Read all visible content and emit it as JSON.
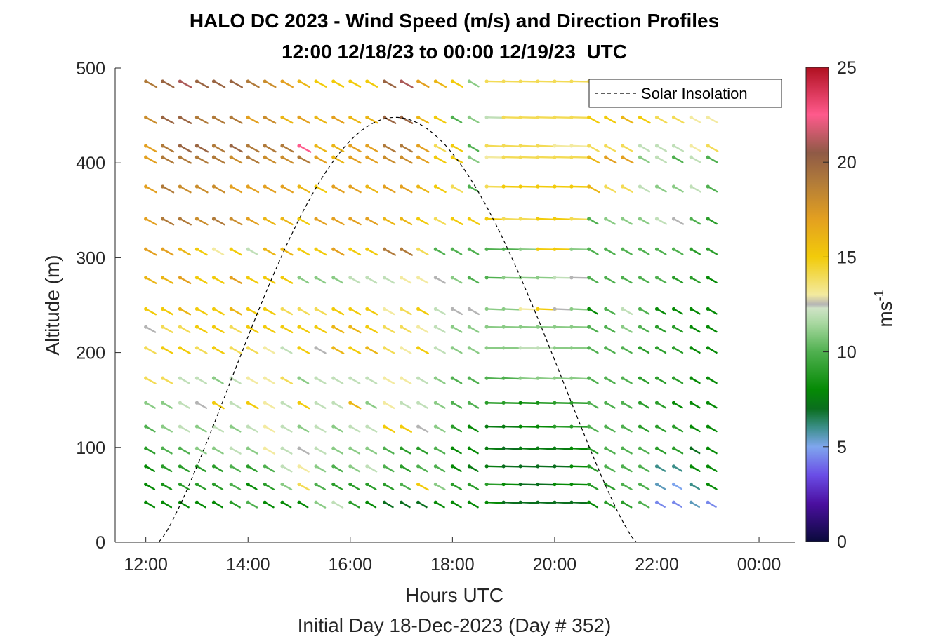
{
  "chart_data": {
    "type": "wind-barb-profile",
    "title": "HALO DC 2023 - Wind Speed (m/s) and Direction Profiles",
    "subtitle": "12:00 12/18/23 to 00:00 12/19/23  UTC",
    "xlabel": "Hours UTC",
    "xlabel2": "Initial Day 18-Dec-2023 (Day # 352)",
    "ylabel": "Altitude (m)",
    "xlim": [
      11.4,
      24.7
    ],
    "ylim": [
      0,
      500
    ],
    "x_ticks": [
      12,
      14,
      16,
      18,
      20,
      22,
      24
    ],
    "x_tick_labels": [
      "12:00",
      "14:00",
      "16:00",
      "18:00",
      "20:00",
      "22:00",
      "00:00"
    ],
    "y_ticks": [
      0,
      100,
      200,
      300,
      400,
      500
    ],
    "y_tick_labels": [
      "0",
      "100",
      "200",
      "300",
      "400",
      "500"
    ],
    "colorbar": {
      "label": "ms",
      "label_exponent": "-1",
      "range": [
        0,
        25
      ],
      "ticks": [
        0,
        5,
        10,
        15,
        20,
        25
      ],
      "tick_labels": [
        "0",
        "5",
        "10",
        "15",
        "20",
        "25"
      ],
      "stops": [
        {
          "v": 0,
          "color": "#0a0a3c"
        },
        {
          "v": 2,
          "color": "#4b0fa0"
        },
        {
          "v": 3.5,
          "color": "#6a4de6"
        },
        {
          "v": 5,
          "color": "#7fa6ee"
        },
        {
          "v": 6,
          "color": "#3c8f8a"
        },
        {
          "v": 7,
          "color": "#0a6e1e"
        },
        {
          "v": 8,
          "color": "#058a05"
        },
        {
          "v": 10,
          "color": "#4fb04f"
        },
        {
          "v": 11.5,
          "color": "#a8d8a0"
        },
        {
          "v": 12.3,
          "color": "#cfe3c6"
        },
        {
          "v": 12.5,
          "color": "#b4b4b4"
        },
        {
          "v": 13,
          "color": "#f3eaa0"
        },
        {
          "v": 15,
          "color": "#f2cb0a"
        },
        {
          "v": 17,
          "color": "#e3a020"
        },
        {
          "v": 19,
          "color": "#b07a3a"
        },
        {
          "v": 20.5,
          "color": "#8f5a46"
        },
        {
          "v": 22.5,
          "color": "#ff5a8c"
        },
        {
          "v": 25,
          "color": "#b01020"
        }
      ]
    },
    "legend": {
      "entries": [
        "Solar Insolation"
      ],
      "placement": "top-right",
      "line_style": "dashed",
      "color": "#000000"
    },
    "solar_insolation": {
      "start_hour": 12.25,
      "peak_hour": 16.88,
      "end_hour": 21.6,
      "peak_altitude_equiv": 448
    },
    "series": {
      "times": [
        12.0,
        12.33,
        12.67,
        13.0,
        13.33,
        13.67,
        14.0,
        14.33,
        14.67,
        15.0,
        15.33,
        15.67,
        16.0,
        16.33,
        16.67,
        17.0,
        17.33,
        17.67,
        18.0,
        18.33,
        18.67,
        19.0,
        19.33,
        19.67,
        20.0,
        20.33,
        20.67,
        21.0,
        21.33,
        21.67,
        22.0,
        22.33,
        22.67,
        23.0
      ],
      "altitudes": [
        42,
        61,
        80,
        99,
        122,
        147,
        173,
        205,
        227,
        246,
        279,
        309,
        341,
        375,
        406,
        418,
        448,
        486
      ],
      "speed_profile_by_altitude": [
        [
          8,
          8,
          8,
          8,
          8,
          9,
          10,
          8,
          8,
          8,
          11,
          12,
          9,
          8,
          7,
          7,
          7,
          8,
          8,
          8,
          8,
          7,
          7,
          7,
          7,
          7,
          8,
          9,
          9,
          10,
          4.5,
          4.5,
          5.5,
          4.5
        ],
        [
          8,
          8.5,
          9,
          9,
          9,
          10,
          8,
          9,
          11,
          14,
          10,
          9,
          9,
          9,
          9,
          10,
          15,
          11,
          9,
          9,
          9,
          8,
          7,
          7,
          8,
          8,
          9,
          9,
          10,
          10,
          5.5,
          5,
          6,
          8
        ],
        [
          8,
          9,
          9,
          9,
          9,
          10,
          9,
          10,
          12,
          13,
          11,
          10,
          11,
          12,
          10,
          9,
          10,
          10,
          8,
          7.5,
          7.5,
          7,
          7,
          7,
          7,
          8,
          9,
          10,
          10,
          10,
          6,
          6,
          8,
          8
        ],
        [
          9,
          10,
          10,
          11,
          11,
          12,
          11,
          13,
          12,
          12.5,
          12,
          11,
          11,
          11,
          10,
          9,
          9,
          10,
          8,
          8,
          7.5,
          7,
          7.5,
          7.5,
          7.5,
          8,
          9,
          10,
          10,
          10,
          9,
          9,
          7,
          8
        ],
        [
          10,
          11,
          12,
          11,
          12,
          11,
          12,
          13,
          12,
          11,
          12,
          11,
          12,
          12,
          15,
          15,
          12.5,
          11,
          9,
          8,
          7.5,
          7.5,
          8,
          8,
          9,
          9,
          10,
          10,
          10,
          9,
          9,
          9,
          8,
          8
        ],
        [
          11,
          11,
          12,
          12.5,
          15,
          12,
          15,
          13,
          12,
          15,
          12,
          12,
          16,
          11,
          13,
          12,
          12,
          11,
          10,
          10,
          9,
          9,
          8,
          8.5,
          9,
          9,
          10,
          10,
          10,
          9,
          9,
          8,
          8,
          8
        ],
        [
          14,
          14,
          12,
          12,
          11,
          12,
          13,
          13,
          14,
          11,
          12,
          12,
          12,
          12,
          13,
          13,
          12,
          11,
          10,
          10,
          10,
          10,
          11,
          11,
          11,
          11,
          10,
          10,
          10,
          9,
          9,
          9,
          8,
          8
        ],
        [
          14,
          15,
          15,
          14,
          15,
          14,
          14,
          13,
          12,
          15,
          12.5,
          16,
          15,
          16,
          14,
          13,
          15,
          12,
          11,
          11,
          11,
          11,
          12,
          12,
          11,
          11,
          10,
          10,
          10,
          9,
          9,
          9,
          8,
          8
        ],
        [
          12.5,
          14,
          14,
          15,
          15,
          14,
          15,
          15,
          15,
          15,
          15,
          16,
          16,
          15,
          14,
          14,
          13,
          12,
          11,
          11,
          11,
          11,
          11,
          11,
          11,
          11,
          10,
          10,
          11,
          10,
          9,
          9,
          8,
          8
        ],
        [
          15,
          15,
          16,
          15,
          15,
          16,
          15,
          15,
          14,
          14,
          14,
          15,
          15,
          15,
          13,
          14,
          15,
          12,
          12.5,
          12.5,
          11,
          11,
          13,
          15,
          12.5,
          11,
          8,
          10,
          12,
          10,
          8,
          8,
          8,
          8
        ],
        [
          16,
          16,
          17,
          15,
          15,
          17,
          15,
          15,
          15,
          11,
          11,
          11,
          12,
          12,
          12,
          13,
          13,
          12.5,
          11,
          10,
          10,
          11,
          11,
          11,
          12,
          12.5,
          10,
          10,
          10,
          10,
          10,
          9,
          9,
          8
        ],
        [
          17,
          17,
          16,
          15,
          13,
          15,
          12,
          16,
          16,
          15,
          15,
          17,
          15,
          15,
          19,
          19,
          14,
          10,
          10,
          10,
          10,
          10,
          11,
          15,
          15,
          11,
          10,
          10,
          10,
          10,
          10,
          10,
          9,
          9
        ],
        [
          17,
          19,
          19,
          18,
          19,
          18,
          17,
          16,
          16,
          15,
          17,
          17,
          17,
          17,
          16,
          16,
          15,
          14,
          15,
          15,
          15,
          14,
          14,
          15,
          15,
          14,
          10,
          11,
          11,
          11,
          12,
          12.5,
          10,
          9
        ],
        [
          17,
          19,
          18,
          18,
          18,
          17,
          17,
          17,
          17,
          16,
          15,
          17,
          17,
          16,
          17,
          17,
          16,
          15,
          14,
          10,
          14,
          15,
          15,
          15,
          15,
          15,
          16,
          14,
          14,
          12,
          11,
          11,
          12,
          10
        ],
        [
          17,
          19,
          19,
          19,
          19,
          18,
          19,
          18,
          18,
          19,
          17,
          16,
          17,
          17,
          18,
          18,
          17,
          15,
          15,
          11,
          13,
          14,
          14,
          14,
          14,
          14,
          16,
          17,
          17,
          11,
          12,
          10,
          12,
          10
        ],
        [
          17,
          19,
          20,
          20,
          19,
          20,
          19,
          19,
          19,
          22.5,
          16,
          16,
          17,
          17,
          19,
          19,
          17,
          14,
          15,
          10,
          14,
          14,
          14,
          14,
          13,
          13,
          14,
          14,
          14,
          12,
          12,
          12,
          13,
          14
        ],
        [
          18,
          20,
          20,
          19,
          19,
          19,
          17,
          18,
          16,
          17,
          16,
          17,
          16,
          16,
          20,
          20,
          16,
          15,
          10,
          11,
          12,
          14,
          14,
          14,
          14,
          14,
          15,
          15,
          16,
          15,
          14,
          14,
          13,
          13
        ],
        [
          19,
          20,
          21,
          20,
          20,
          20,
          19,
          18,
          17,
          16,
          15,
          15,
          15,
          15,
          20,
          21,
          17,
          16,
          15,
          11,
          14,
          14,
          14,
          14,
          14,
          14,
          14,
          14,
          14,
          14,
          14,
          14,
          13,
          13
        ]
      ]
    }
  }
}
